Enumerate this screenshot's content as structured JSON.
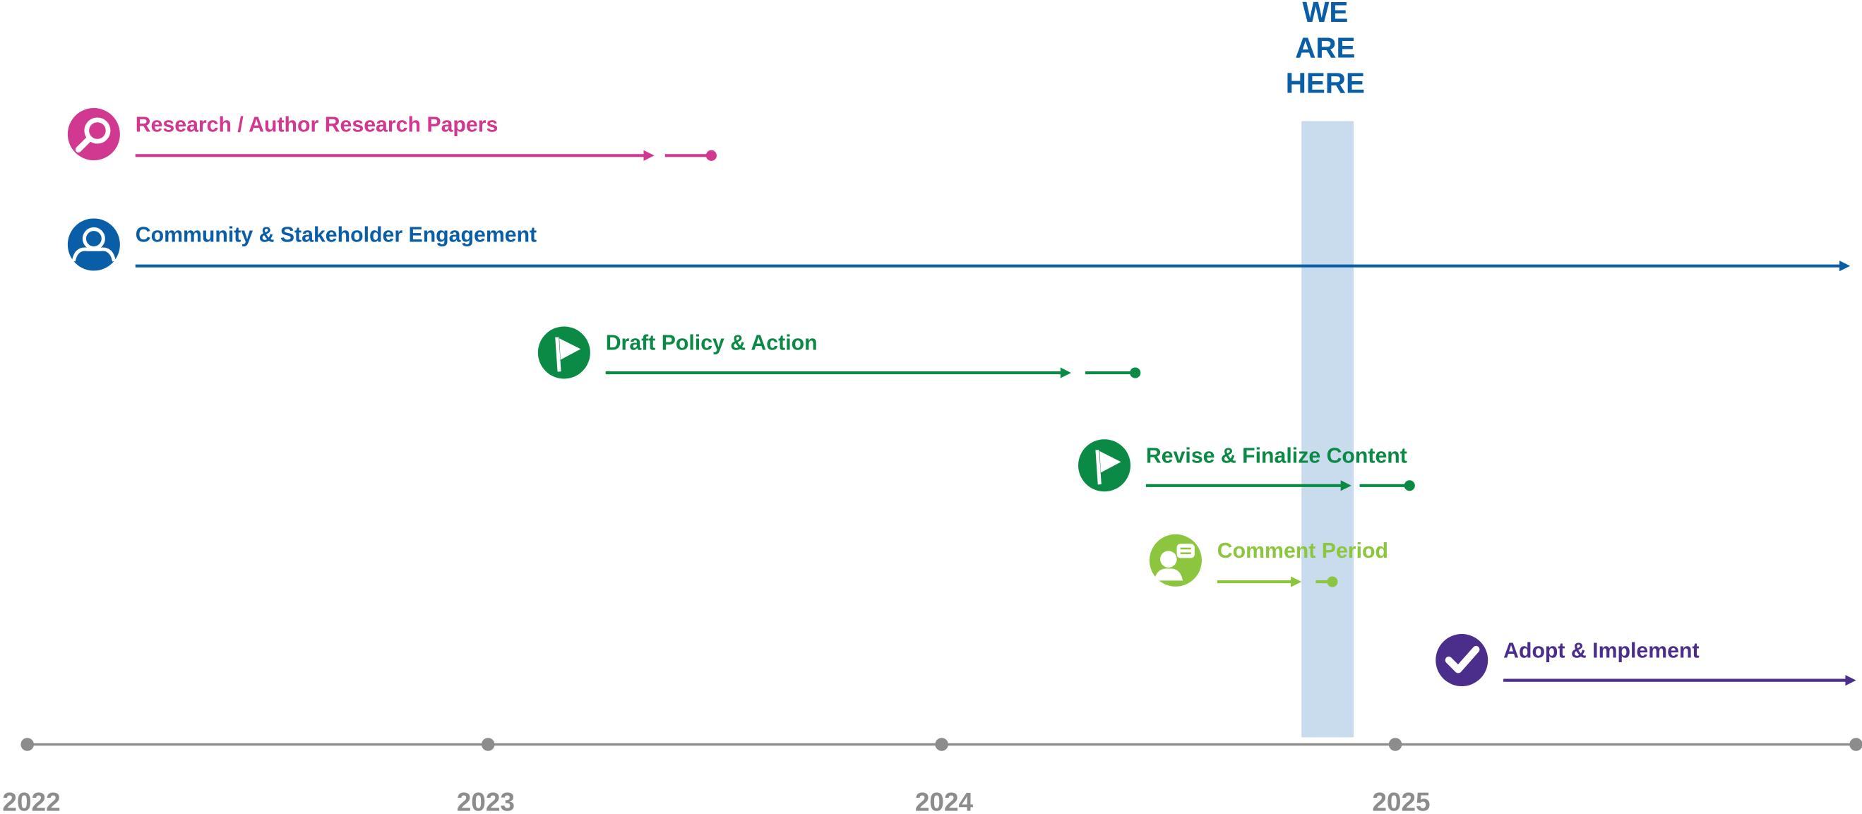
{
  "marker": {
    "lines": [
      "WE",
      "ARE",
      "HERE"
    ],
    "color": "#0a5ea8",
    "band_color": "#c9dcee"
  },
  "tasks": [
    {
      "label": "Research / Author Research Papers",
      "color": "#d1388f",
      "icon": "search"
    },
    {
      "label": "Community & Stakeholder Engagement",
      "color": "#0a5ea8",
      "icon": "person"
    },
    {
      "label": "Draft Policy & Action",
      "color": "#0a8a45",
      "icon": "flag"
    },
    {
      "label": "Revise & Finalize Content",
      "color": "#0a8a45",
      "icon": "flag"
    },
    {
      "label": "Comment Period",
      "color": "#8cc63f",
      "icon": "comment"
    },
    {
      "label": "Adopt & Implement",
      "color": "#4b2e8c",
      "icon": "check"
    }
  ],
  "axis": {
    "years": [
      "2022",
      "2023",
      "2024",
      "2025"
    ],
    "color": "#8c8c8c"
  }
}
